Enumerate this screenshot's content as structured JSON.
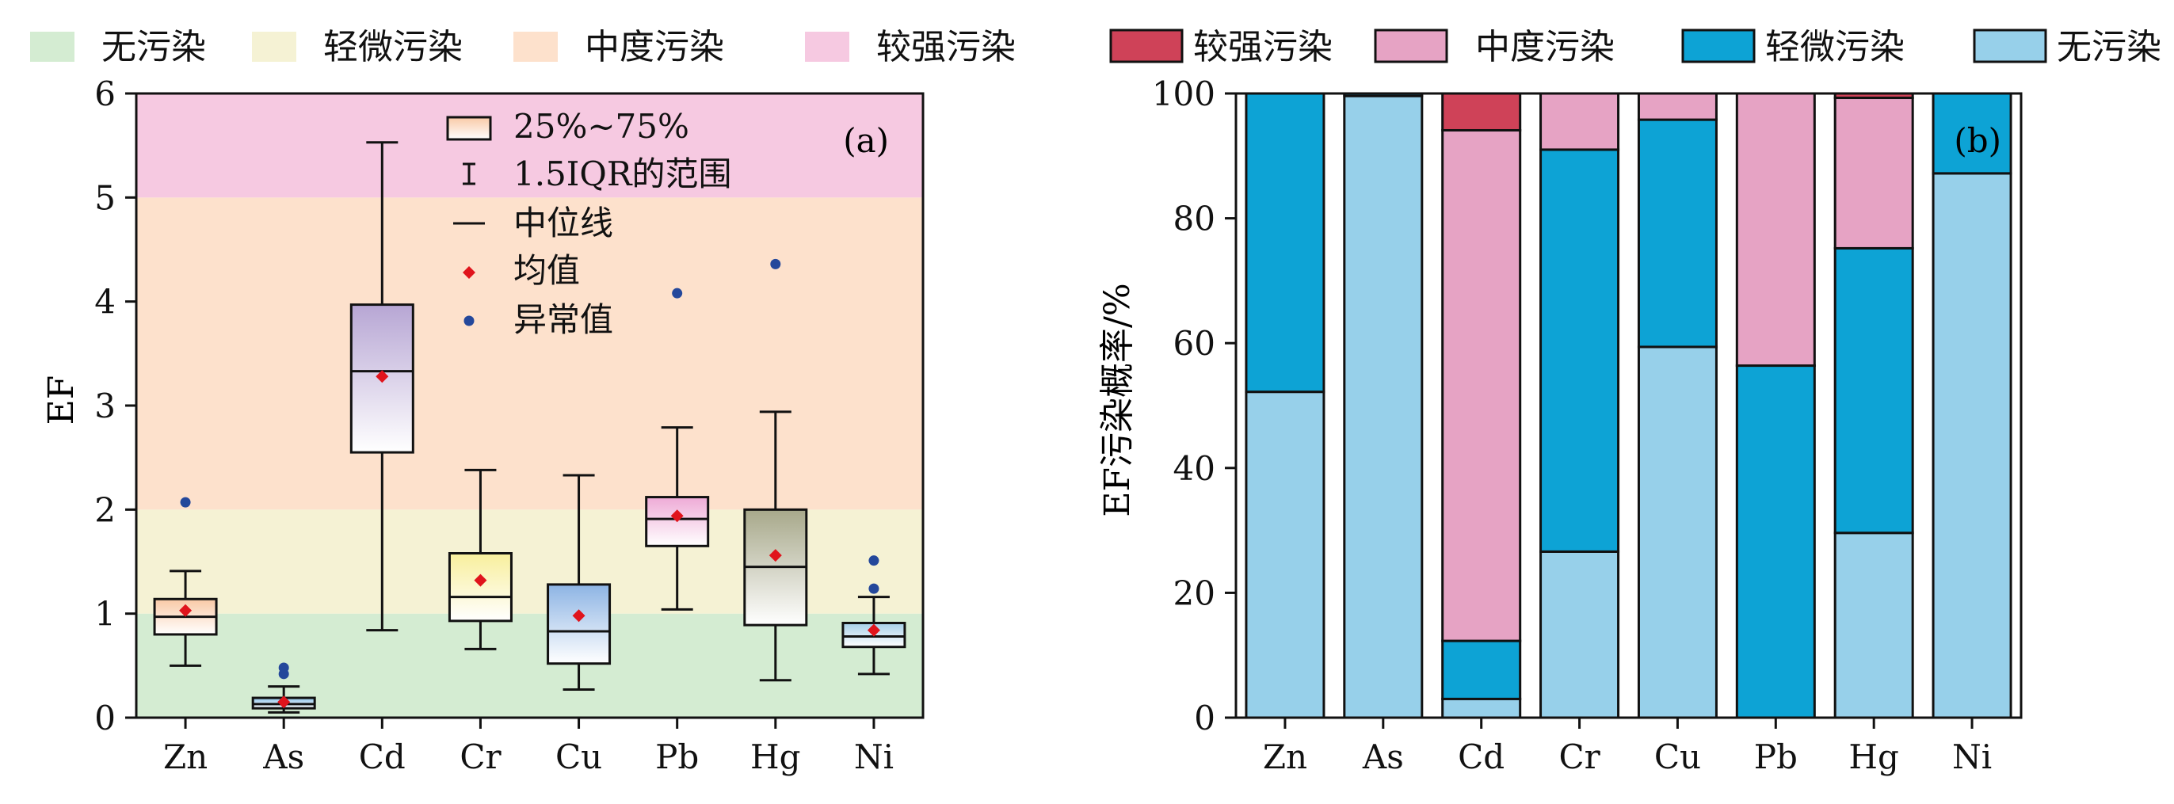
{
  "top_legend_a": [
    {
      "label": "无污染",
      "color": "#d4ecd2"
    },
    {
      "label": "轻微污染",
      "color": "#f5f2d4"
    },
    {
      "label": "中度污染",
      "color": "#fde1cc"
    },
    {
      "label": "较强污染",
      "color": "#f6c9e1"
    }
  ],
  "top_legend_b": [
    {
      "label": "较强污染",
      "color": "#cf4258"
    },
    {
      "label": "中度污染",
      "color": "#e6a3c4"
    },
    {
      "label": "轻微污染",
      "color": "#0da3d5"
    },
    {
      "label": "无污染",
      "color": "#97d0ea"
    }
  ],
  "chart_data": [
    {
      "type": "box",
      "panel_label": "(a)",
      "ylabel": "EF",
      "ylim": [
        0,
        6
      ],
      "yticks": [
        "0",
        "1",
        "2",
        "3",
        "4",
        "5",
        "6"
      ],
      "categories": [
        "Zn",
        "As",
        "Cd",
        "Cr",
        "Cu",
        "Pb",
        "Hg",
        "Ni"
      ],
      "background_bands": [
        {
          "label": "无污染",
          "from": 0,
          "to": 1,
          "color": "#d4ecd2"
        },
        {
          "label": "轻微污染",
          "from": 1,
          "to": 2,
          "color": "#f5f2d4"
        },
        {
          "label": "中度污染",
          "from": 2,
          "to": 5,
          "color": "#fde1cc"
        },
        {
          "label": "较强污染",
          "from": 5,
          "to": 6,
          "color": "#f6c9e1"
        }
      ],
      "legend": {
        "box": "25%~75%",
        "whisker": "1.5IQR的范围",
        "median": "中位线",
        "mean": "均值",
        "outlier": "异常值"
      },
      "boxes": [
        {
          "name": "Zn",
          "q1": 0.8,
          "median": 0.97,
          "q3": 1.14,
          "whisker_low": 0.5,
          "whisker_high": 1.41,
          "mean": 1.03,
          "outliers": [
            2.07
          ],
          "color": "#f9c9a6"
        },
        {
          "name": "As",
          "q1": 0.09,
          "median": 0.13,
          "q3": 0.19,
          "whisker_low": 0.05,
          "whisker_high": 0.3,
          "mean": 0.15,
          "outliers": [
            0.42,
            0.48
          ],
          "color": "#8fc4ea"
        },
        {
          "name": "Cd",
          "q1": 2.55,
          "median": 3.33,
          "q3": 3.97,
          "whisker_low": 0.84,
          "whisker_high": 5.53,
          "mean": 3.28,
          "outliers": [],
          "color": "#b7a6d4"
        },
        {
          "name": "Cr",
          "q1": 0.93,
          "median": 1.16,
          "q3": 1.58,
          "whisker_low": 0.66,
          "whisker_high": 2.38,
          "mean": 1.32,
          "outliers": [],
          "color": "#f8ef9c"
        },
        {
          "name": "Cu",
          "q1": 0.52,
          "median": 0.83,
          "q3": 1.28,
          "whisker_low": 0.27,
          "whisker_high": 2.33,
          "mean": 0.98,
          "outliers": [],
          "color": "#8db4e4"
        },
        {
          "name": "Pb",
          "q1": 1.65,
          "median": 1.91,
          "q3": 2.12,
          "whisker_low": 1.04,
          "whisker_high": 2.79,
          "mean": 1.94,
          "outliers": [
            4.08
          ],
          "color": "#eeaad6"
        },
        {
          "name": "Hg",
          "q1": 0.89,
          "median": 1.45,
          "q3": 2.0,
          "whisker_low": 0.36,
          "whisker_high": 2.94,
          "mean": 1.56,
          "outliers": [
            4.36
          ],
          "color": "#a7a88a"
        },
        {
          "name": "Ni",
          "q1": 0.68,
          "median": 0.78,
          "q3": 0.91,
          "whisker_low": 0.42,
          "whisker_high": 1.16,
          "mean": 0.84,
          "outliers": [
            1.24,
            1.51
          ],
          "color": "#a7cfe8"
        }
      ]
    },
    {
      "type": "stacked_bar",
      "panel_label": "(b)",
      "ylabel": "EF污染概率/%",
      "ylim": [
        0,
        100
      ],
      "yticks": [
        "0",
        "20",
        "40",
        "60",
        "80",
        "100"
      ],
      "categories": [
        "Zn",
        "As",
        "Cd",
        "Cr",
        "Cu",
        "Pb",
        "Hg",
        "Ni"
      ],
      "series": [
        {
          "name": "无污染",
          "color": "#97d0ea",
          "values": [
            52.2,
            99.6,
            3.0,
            26.6,
            59.4,
            0,
            29.6,
            87.2
          ]
        },
        {
          "name": "轻微污染",
          "color": "#0da3d5",
          "values": [
            47.8,
            0.4,
            9.3,
            64.4,
            36.4,
            56.4,
            45.6,
            12.8
          ]
        },
        {
          "name": "中度污染",
          "color": "#e6a3c4",
          "values": [
            0,
            0,
            81.8,
            9.0,
            4.2,
            43.6,
            24.1,
            0
          ]
        },
        {
          "name": "较强污染",
          "color": "#cf4258",
          "values": [
            0,
            0,
            5.9,
            0,
            0,
            0,
            0.7,
            0
          ]
        }
      ]
    }
  ]
}
